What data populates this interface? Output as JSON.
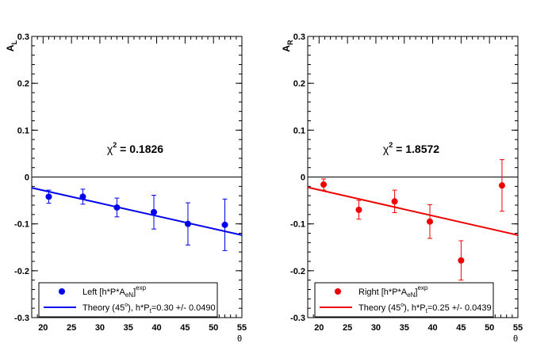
{
  "chart_data": [
    {
      "type": "scatter",
      "ylabel_main": "A",
      "ylabel_sub": "L",
      "xlabel": "θ",
      "xlim": [
        18,
        55
      ],
      "ylim": [
        -0.3,
        0.3
      ],
      "xticks": [
        "20",
        "25",
        "30",
        "35",
        "40",
        "45",
        "50",
        "55"
      ],
      "yticks": [
        "-0.3",
        "-0.2",
        "-0.1",
        "0",
        "0.1",
        "0.2",
        "0.3"
      ],
      "grid": false,
      "color": "#0000ee",
      "annotation_prefix": "χ",
      "annotation_sup": "2",
      "annotation_value": " = 0.1826",
      "series": [
        {
          "name": "Left [h*P*A",
          "name_sub": "eN",
          "name_tail": "]",
          "name_sup": "exp",
          "x": [
            21.0,
            27.0,
            33.0,
            39.5,
            45.5,
            52.0
          ],
          "y": [
            -0.042,
            -0.042,
            -0.065,
            -0.075,
            -0.1,
            -0.102
          ],
          "yerr": [
            0.014,
            0.016,
            0.02,
            0.036,
            0.045,
            0.055
          ]
        },
        {
          "name": "Theory (45",
          "name_sup": "o",
          "name_tail": "), h*P",
          "name_sub": "t",
          "name_tail2": "=0.30 +/- 0.0490",
          "line_x": [
            18,
            55
          ],
          "line_y": [
            -0.023,
            -0.124
          ]
        }
      ],
      "legend_position": "bottom"
    },
    {
      "type": "scatter",
      "ylabel_main": "A",
      "ylabel_sub": "R",
      "xlabel": "θ",
      "xlim": [
        18,
        55
      ],
      "ylim": [
        -0.3,
        0.3
      ],
      "xticks": [
        "20",
        "25",
        "30",
        "35",
        "40",
        "45",
        "50",
        "55"
      ],
      "yticks": [
        "-0.3",
        "-0.2",
        "-0.1",
        "0",
        "0.1",
        "0.2",
        "0.3"
      ],
      "grid": false,
      "color": "#ee0000",
      "annotation_prefix": "χ",
      "annotation_sup": "2",
      "annotation_value": " = 1.8572",
      "series": [
        {
          "name": "Right [h*P*A",
          "name_sub": "eN",
          "name_tail": "]",
          "name_sup": "exp",
          "x": [
            20.8,
            27.0,
            33.3,
            39.5,
            45.0,
            52.2
          ],
          "y": [
            -0.016,
            -0.07,
            -0.052,
            -0.095,
            -0.178,
            -0.018
          ],
          "yerr": [
            0.012,
            0.02,
            0.024,
            0.036,
            0.042,
            0.055
          ]
        },
        {
          "name": "Theory (45",
          "name_sup": "o",
          "name_tail": "), h*P",
          "name_sub": "t",
          "name_tail2": "=0.25 +/- 0.0439",
          "line_x": [
            18,
            55
          ],
          "line_y": [
            -0.022,
            -0.124
          ]
        }
      ],
      "legend_position": "bottom"
    }
  ]
}
